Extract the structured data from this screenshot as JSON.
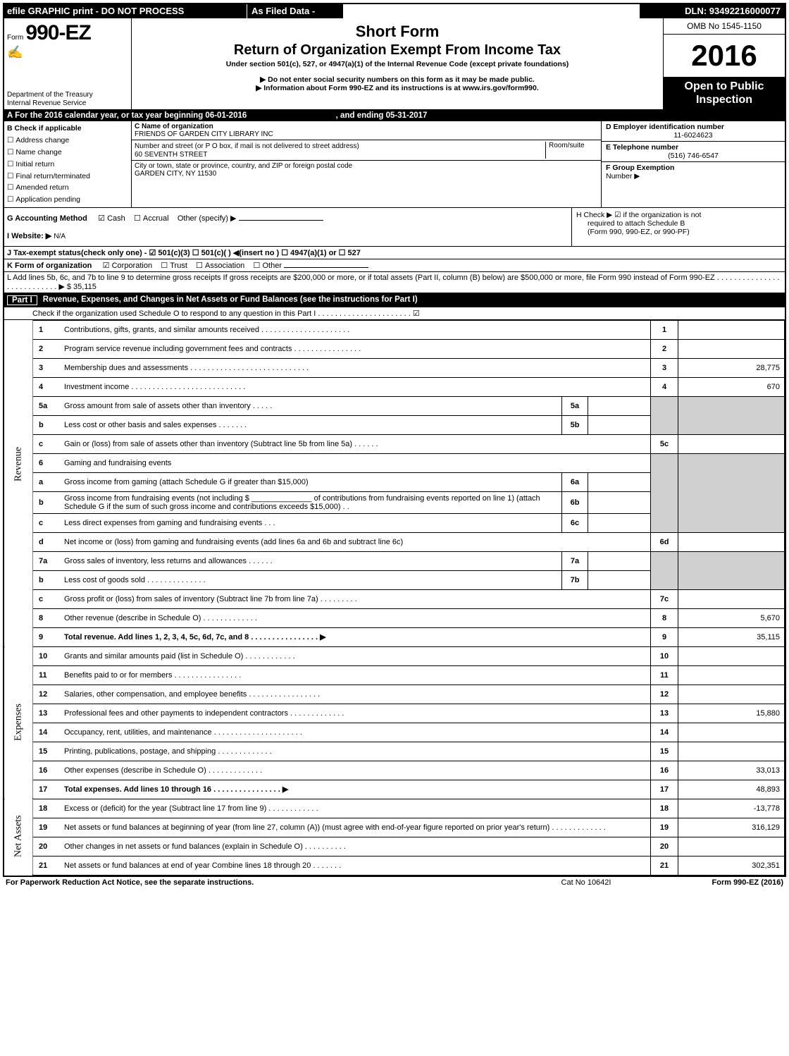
{
  "topbar": {
    "left": "efile GRAPHIC print - DO NOT PROCESS",
    "mid": "As Filed Data -",
    "right": "DLN: 93492216000077"
  },
  "header": {
    "form_prefix": "Form",
    "form_number": "990-EZ",
    "dept": "Department of the Treasury",
    "irs": "Internal Revenue Service",
    "title1": "Short Form",
    "title2": "Return of Organization Exempt From Income Tax",
    "subtitle": "Under section 501(c), 527, or 4947(a)(1) of the Internal Revenue Code (except private foundations)",
    "note1": "▶ Do not enter social security numbers on this form as it may be made public.",
    "note2": "▶ Information about Form 990-EZ and its instructions is at www.irs.gov/form990.",
    "omb": "OMB No 1545-1150",
    "year": "2016",
    "inspection1": "Open to Public",
    "inspection2": "Inspection"
  },
  "rowA": {
    "text_pre": "A  For the 2016 calendar year, or tax year beginning 06-01-2016",
    "text_post": ", and ending 05-31-2017"
  },
  "colB": {
    "title": "B  Check if applicable",
    "items": [
      "Address change",
      "Name change",
      "Initial return",
      "Final return/terminated",
      "Amended return",
      "Application pending"
    ]
  },
  "colC": {
    "name_label": "C Name of organization",
    "name_val": "FRIENDS OF GARDEN CITY LIBRARY INC",
    "addr_label": "Number and street (or P O box, if mail is not delivered to street address)",
    "room_label": "Room/suite",
    "addr_val": "60 SEVENTH STREET",
    "city_label": "City or town, state or province, country, and ZIP or foreign postal code",
    "city_val": "GARDEN CITY, NY  11530"
  },
  "colDEF": {
    "d_label": "D Employer identification number",
    "d_val": "11-6024623",
    "e_label": "E Telephone number",
    "e_val": "(516) 746-6547",
    "f_label": "F Group Exemption",
    "f_label2": "Number   ▶"
  },
  "rowG": {
    "label": "G Accounting Method",
    "cash": "Cash",
    "accrual": "Accrual",
    "other": "Other (specify) ▶"
  },
  "rowH": {
    "text1": "H   Check ▶  ☑  if the organization is not",
    "text2": "required to attach Schedule B",
    "text3": "(Form 990, 990-EZ, or 990-PF)"
  },
  "rowI": {
    "label": "I Website: ▶",
    "val": "N/A"
  },
  "rowJ": {
    "text": "J Tax-exempt status(check only one) - ☑ 501(c)(3)  ☐ 501(c)( ) ◀(insert no ) ☐ 4947(a)(1) or ☐ 527"
  },
  "rowK": {
    "label": "K Form of organization",
    "corp": "Corporation",
    "trust": "Trust",
    "assoc": "Association",
    "other": "Other"
  },
  "rowL": {
    "text": "L Add lines 5b, 6c, and 7b to line 9 to determine gross receipts If gross receipts are $200,000 or more, or if total assets (Part II, column (B) below) are $500,000 or more, file Form 990 instead of Form 990-EZ  . . . . . . . . . . . . . . . . . . . . . . . . . . . ▶ $ 35,115"
  },
  "part1": {
    "label": "Part I",
    "title": "Revenue, Expenses, and Changes in Net Assets or Fund Balances (see the instructions for Part I)",
    "subtext": "Check if the organization used Schedule O to respond to any question in this Part I . . . . . . . . . . . . . . . . . . . . . .  ☑"
  },
  "sideLabels": {
    "revenue": "Revenue",
    "expenses": "Expenses",
    "netassets": "Net Assets"
  },
  "lines": {
    "l1": {
      "n": "1",
      "d": "Contributions, gifts, grants, and similar amounts received . . . . . . . . . . . . . . . . . . . . .",
      "rn": "1",
      "rv": ""
    },
    "l2": {
      "n": "2",
      "d": "Program service revenue including government fees and contracts . . . . . . . . . . . . . . . .",
      "rn": "2",
      "rv": ""
    },
    "l3": {
      "n": "3",
      "d": "Membership dues and assessments . . . . . . . . . . . . . . . . . . . . . . . . . . . .",
      "rn": "3",
      "rv": "28,775"
    },
    "l4": {
      "n": "4",
      "d": "Investment income . . . . . . . . . . . . . . . . . . . . . . . . . . .",
      "rn": "4",
      "rv": "670"
    },
    "l5a": {
      "n": "5a",
      "d": "Gross amount from sale of assets other than inventory . . . . .",
      "sn": "5a",
      "sv": ""
    },
    "l5b": {
      "n": "b",
      "d": "Less cost or other basis and sales expenses . . . . . . .",
      "sn": "5b",
      "sv": ""
    },
    "l5c": {
      "n": "c",
      "d": "Gain or (loss) from sale of assets other than inventory (Subtract line 5b from line 5a) . . . . . .",
      "rn": "5c",
      "rv": ""
    },
    "l6": {
      "n": "6",
      "d": "Gaming and fundraising events"
    },
    "l6a": {
      "n": "a",
      "d": "Gross income from gaming (attach Schedule G if greater than $15,000)",
      "sn": "6a",
      "sv": ""
    },
    "l6b": {
      "n": "b",
      "d": "Gross income from fundraising events (not including $ ______________ of contributions from fundraising events reported on line 1) (attach Schedule G if the sum of such gross income and contributions exceeds $15,000)   . .",
      "sn": "6b",
      "sv": ""
    },
    "l6c": {
      "n": "c",
      "d": "Less direct expenses from gaming and fundraising events    . . .",
      "sn": "6c",
      "sv": ""
    },
    "l6d": {
      "n": "d",
      "d": "Net income or (loss) from gaming and fundraising events (add lines 6a and 6b and subtract line 6c)",
      "rn": "6d",
      "rv": ""
    },
    "l7a": {
      "n": "7a",
      "d": "Gross sales of inventory, less returns and allowances . . . . . .",
      "sn": "7a",
      "sv": ""
    },
    "l7b": {
      "n": "b",
      "d": "Less cost of goods sold        . . . . . . . . . . . . . .",
      "sn": "7b",
      "sv": ""
    },
    "l7c": {
      "n": "c",
      "d": "Gross profit or (loss) from sales of inventory (Subtract line 7b from line 7a) . . . . . . . . .",
      "rn": "7c",
      "rv": ""
    },
    "l8": {
      "n": "8",
      "d": "Other revenue (describe in Schedule O)                 . . . . . . . . . . . . .",
      "rn": "8",
      "rv": "5,670"
    },
    "l9": {
      "n": "9",
      "d": "Total revenue. Add lines 1, 2, 3, 4, 5c, 6d, 7c, and 8 . . . . . . . . . . . . . . . .    ▶",
      "rn": "9",
      "rv": "35,115"
    },
    "l10": {
      "n": "10",
      "d": "Grants and similar amounts paid (list in Schedule O)        . . . . . . . . . . . .",
      "rn": "10",
      "rv": ""
    },
    "l11": {
      "n": "11",
      "d": "Benefits paid to or for members              . . . . . . . . . . . . . . . .",
      "rn": "11",
      "rv": ""
    },
    "l12": {
      "n": "12",
      "d": "Salaries, other compensation, and employee benefits . . . . . . . . . . . . . . . . .",
      "rn": "12",
      "rv": ""
    },
    "l13": {
      "n": "13",
      "d": "Professional fees and other payments to independent contractors . . . . . . . . . . . . .",
      "rn": "13",
      "rv": "15,880"
    },
    "l14": {
      "n": "14",
      "d": "Occupancy, rent, utilities, and maintenance . . . . . . . . . . . . . . . . . . . . .",
      "rn": "14",
      "rv": ""
    },
    "l15": {
      "n": "15",
      "d": "Printing, publications, postage, and shipping          . . . . . . . . . . . . .",
      "rn": "15",
      "rv": ""
    },
    "l16": {
      "n": "16",
      "d": "Other expenses (describe in Schedule O)           . . . . . . . . . . . . .",
      "rn": "16",
      "rv": "33,013"
    },
    "l17": {
      "n": "17",
      "d": "Total expenses. Add lines 10 through 16       . . . . . . . . . . . . . . . .    ▶",
      "rn": "17",
      "rv": "48,893"
    },
    "l18": {
      "n": "18",
      "d": "Excess or (deficit) for the year (Subtract line 17 from line 9)      . . . . . . . . . . . .",
      "rn": "18",
      "rv": "-13,778"
    },
    "l19": {
      "n": "19",
      "d": "Net assets or fund balances at beginning of year (from line 27, column (A)) (must agree with end-of-year figure reported on prior year's return)          . . . . . . . . . . . . .",
      "rn": "19",
      "rv": "316,129"
    },
    "l20": {
      "n": "20",
      "d": "Other changes in net assets or fund balances (explain in Schedule O)    . . . . . . . . . .",
      "rn": "20",
      "rv": ""
    },
    "l21": {
      "n": "21",
      "d": "Net assets or fund balances at end of year Combine lines 18 through 20      . . . . . . .",
      "rn": "21",
      "rv": "302,351"
    }
  },
  "footer": {
    "left": "For Paperwork Reduction Act Notice, see the separate instructions.",
    "mid": "Cat No 10642I",
    "right": "Form 990-EZ (2016)"
  }
}
